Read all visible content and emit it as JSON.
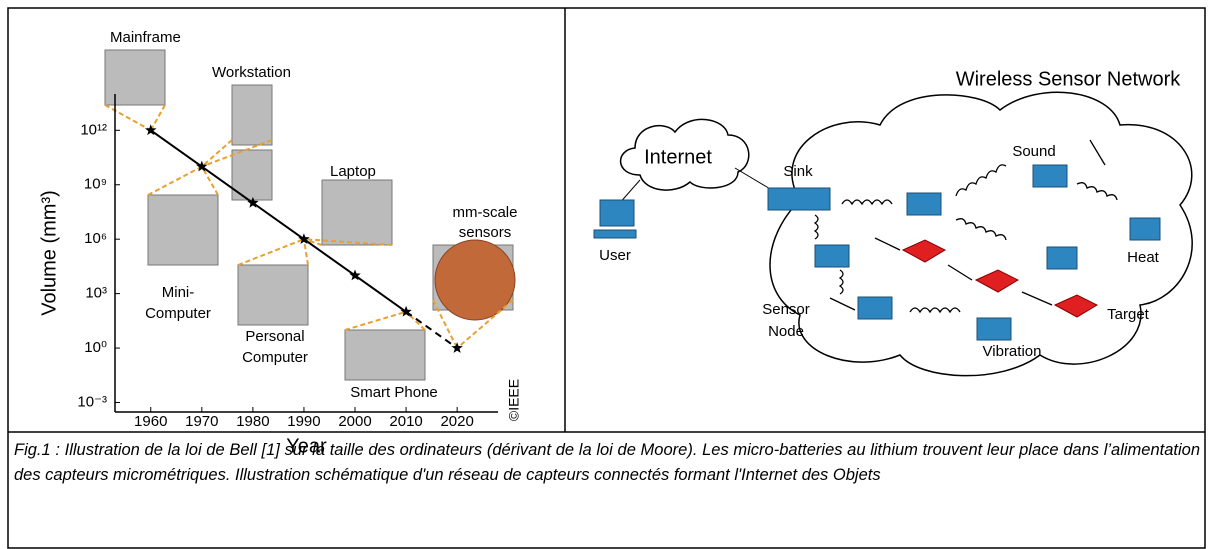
{
  "chart_data": {
    "type": "line",
    "y_label": "Volume (mm³)",
    "x_label": "Year",
    "x": [
      1960,
      1970,
      1980,
      1990,
      2000,
      2010,
      2020
    ],
    "values": [
      1000000000000,
      10000000000,
      100000000,
      1000000,
      10000,
      100,
      1
    ],
    "color": "#000000",
    "projected_from": 2010,
    "log_y": true,
    "xlim": [
      1953,
      2028
    ],
    "xticks": [
      1960,
      1970,
      1980,
      1990,
      2000,
      2010,
      2020
    ],
    "ylim": [
      0.0003,
      100000000000000
    ],
    "yticks": [
      {
        "value": 0.001,
        "label": "10⁻³"
      },
      {
        "value": 1,
        "label": "10⁰"
      },
      {
        "value": 1000,
        "label": "10³"
      },
      {
        "value": 1000000,
        "label": "10⁶"
      },
      {
        "value": 1000000000,
        "label": "10⁹"
      },
      {
        "value": 1000000000000,
        "label": "10¹²"
      }
    ],
    "annotations": [
      "Mainframe",
      "Workstation",
      "Mini-",
      "Computer",
      "Personal",
      "Computer",
      "Laptop",
      "Smart Phone",
      "mm-scale",
      "sensors",
      "©IEEE"
    ]
  },
  "diagram": {
    "title": "Wireless Sensor Network",
    "internet": "Internet",
    "user": "User",
    "sink": "Sink",
    "sound": "Sound",
    "heat": "Heat",
    "target": "Target",
    "vibration": "Vibration",
    "sensor_node": [
      "Sensor",
      "Node"
    ]
  },
  "caption": "Fig.1 : Illustration de la loi de Bell [1] sur la taille des ordinateurs (dérivant de la loi de Moore). Les micro-batteries au lithium trouvent leur place dans l’alimentation des capteurs micrométriques. Illustration schématique d'un réseau de capteurs connectés formant l'Internet des Objets"
}
